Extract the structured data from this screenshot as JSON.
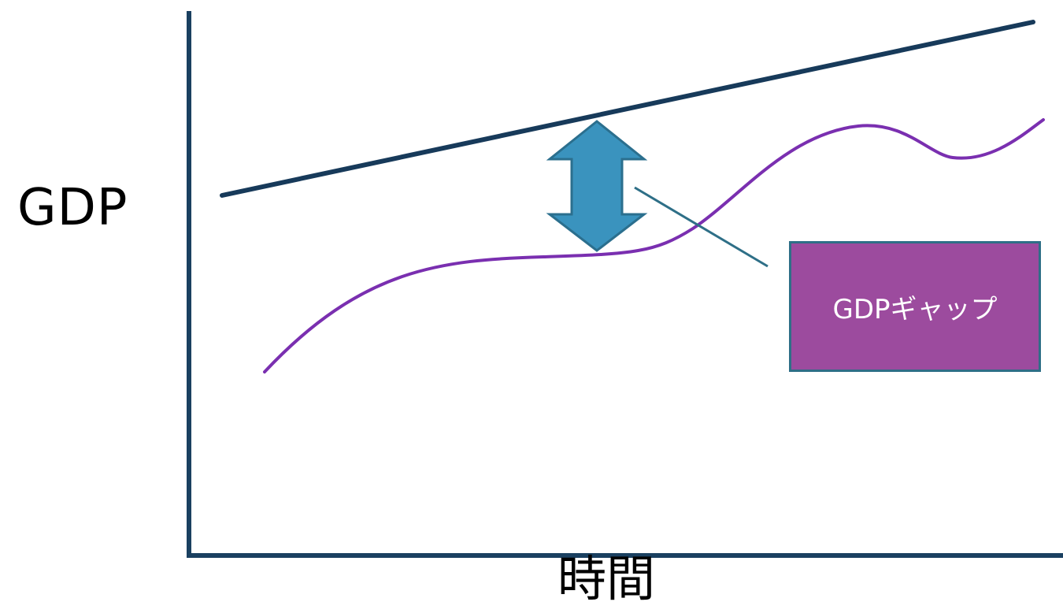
{
  "labels": {
    "y_axis": "GDP",
    "x_axis": "時間",
    "callout": "GDPギャップ"
  },
  "colors": {
    "axis": "#1a4060",
    "potential_line": "#173a5a",
    "actual_curve": "#7a2fb0",
    "arrow_fill": "#3a93be",
    "arrow_stroke": "#2b6f8e",
    "leader_line": "#2e6f87",
    "callout_fill": "#9c4b9e",
    "callout_border": "#2e6f87"
  },
  "icons": {
    "gap_arrow": "double-headed-vertical-arrow"
  }
}
